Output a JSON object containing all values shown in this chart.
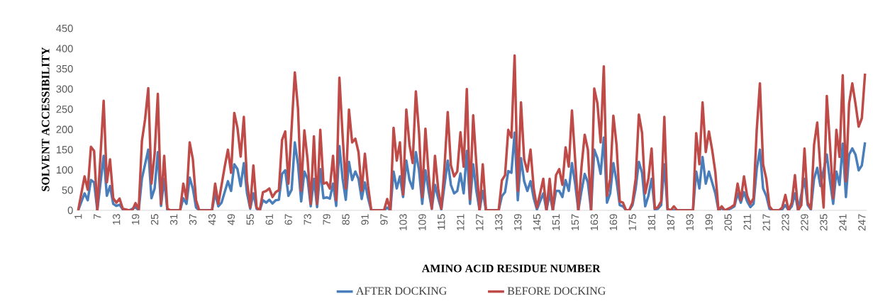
{
  "chart_data": {
    "type": "line",
    "xlabel": "AMINO ACID RESIDUE NUMBER",
    "ylabel": "SOLVENT ACCESSIBILITY",
    "xlim": [
      0.5,
      248.5
    ],
    "xticks": [
      1,
      7,
      13,
      19,
      25,
      31,
      37,
      43,
      49,
      55,
      61,
      67,
      73,
      79,
      85,
      91,
      97,
      103,
      109,
      115,
      121,
      127,
      133,
      139,
      145,
      151,
      157,
      163,
      169,
      175,
      181,
      187,
      193,
      199,
      205,
      211,
      217,
      223,
      229,
      235,
      241,
      247
    ],
    "ylim": [
      0,
      450
    ],
    "yticks": [
      0,
      50,
      100,
      150,
      200,
      250,
      300,
      350,
      400,
      450
    ],
    "grid": false,
    "legend": "bottom",
    "marker": "none",
    "line_style": "solid",
    "series": [
      {
        "name": "AFTER DOCKING",
        "color": "#4a7ebb",
        "x": [
          1,
          3,
          4,
          5,
          6,
          7,
          9,
          10,
          11,
          12,
          13,
          14,
          15,
          17,
          19,
          20,
          21,
          23,
          24,
          25,
          26,
          27,
          28,
          29,
          33,
          34,
          35,
          36,
          37,
          38,
          39,
          43,
          44,
          45,
          46,
          48,
          49,
          50,
          51,
          52,
          53,
          54,
          55,
          56,
          57,
          58,
          59,
          60,
          61,
          62,
          63,
          64,
          65,
          66,
          67,
          68,
          69,
          70,
          71,
          72,
          73,
          74,
          75,
          76,
          77,
          78,
          79,
          80,
          81,
          82,
          83,
          84,
          85,
          86,
          87,
          88,
          89,
          90,
          91,
          92,
          93,
          97,
          98,
          99,
          100,
          101,
          102,
          103,
          104,
          105,
          106,
          107,
          108,
          109,
          110,
          111,
          112,
          113,
          114,
          115,
          116,
          117,
          118,
          119,
          120,
          121,
          122,
          123,
          124,
          125,
          126,
          127,
          128,
          129,
          133,
          134,
          135,
          136,
          137,
          138,
          139,
          140,
          141,
          142,
          143,
          144,
          145,
          146,
          147,
          148,
          149,
          150,
          151,
          152,
          153,
          154,
          155,
          156,
          157,
          158,
          159,
          160,
          161,
          162,
          163,
          164,
          165,
          166,
          167,
          168,
          169,
          170,
          171,
          172,
          173,
          174,
          175,
          176,
          177,
          178,
          179,
          180,
          181,
          182,
          183,
          184,
          185,
          186,
          187,
          194,
          195,
          196,
          197,
          198,
          199,
          200,
          201,
          202,
          203,
          204,
          205,
          206,
          207,
          208,
          209,
          210,
          211,
          212,
          213,
          214,
          215,
          216,
          217,
          218,
          219,
          221,
          222,
          223,
          224,
          225,
          226,
          227,
          228,
          229,
          230,
          231,
          232,
          233,
          234,
          235,
          236,
          237,
          238,
          239,
          240,
          241,
          242,
          243,
          244,
          245,
          246,
          247,
          248
        ],
        "values": [
          0,
          42,
          25,
          75,
          69,
          0,
          135,
          36,
          60,
          16,
          11,
          14,
          2,
          0,
          8,
          0,
          78,
          150,
          30,
          54,
          144,
          11,
          78,
          0,
          0,
          30,
          16,
          81,
          54,
          7,
          0,
          0,
          42,
          10,
          19,
          72,
          48,
          114,
          102,
          60,
          117,
          42,
          4,
          42,
          4,
          0,
          25,
          19,
          26,
          17,
          25,
          26,
          90,
          99,
          36,
          51,
          168,
          114,
          22,
          96,
          78,
          10,
          78,
          8,
          102,
          30,
          32,
          29,
          66,
          11,
          159,
          78,
          26,
          120,
          75,
          96,
          78,
          28,
          69,
          30,
          0,
          0,
          7,
          0,
          96,
          54,
          84,
          33,
          123,
          75,
          54,
          144,
          99,
          16,
          99,
          48,
          4,
          63,
          30,
          2,
          63,
          123,
          63,
          42,
          48,
          91,
          42,
          147,
          16,
          114,
          48,
          0,
          48,
          0,
          0,
          35,
          45,
          97,
          93,
          192,
          25,
          129,
          72,
          48,
          72,
          30,
          2,
          22,
          42,
          0,
          42,
          0,
          48,
          48,
          33,
          75,
          48,
          117,
          66,
          0,
          48,
          90,
          69,
          0,
          150,
          129,
          90,
          180,
          19,
          42,
          117,
          72,
          13,
          10,
          0,
          0,
          13,
          54,
          120,
          93,
          10,
          36,
          78,
          2,
          4,
          13,
          114,
          2,
          0,
          0,
          96,
          54,
          132,
          66,
          96,
          69,
          42,
          0,
          5,
          0,
          2,
          5,
          10,
          42,
          19,
          45,
          22,
          8,
          16,
          102,
          150,
          54,
          36,
          4,
          0,
          0,
          2,
          13,
          0,
          10,
          42,
          0,
          null,
          78,
          13,
          2,
          78,
          105,
          60,
          null,
          138,
          72,
          16,
          96,
          63,
          165,
          33,
          138,
          153,
          138,
          99,
          111,
          168
        ]
      },
      {
        "name": "BEFORE DOCKING",
        "color": "#be4b48",
        "x": [
          1,
          3,
          4,
          5,
          6,
          7,
          9,
          10,
          11,
          12,
          13,
          14,
          15,
          17,
          18,
          19,
          20,
          21,
          22,
          23,
          24,
          25,
          26,
          27,
          28,
          29,
          30,
          33,
          34,
          35,
          36,
          37,
          38,
          39,
          40,
          43,
          44,
          45,
          47,
          48,
          49,
          50,
          51,
          52,
          53,
          54,
          55,
          56,
          57,
          58,
          59,
          60,
          61,
          62,
          63,
          64,
          65,
          66,
          67,
          69,
          70,
          71,
          72,
          73,
          74,
          75,
          76,
          77,
          78,
          79,
          80,
          81,
          82,
          83,
          84,
          85,
          86,
          87,
          88,
          89,
          90,
          91,
          92,
          93,
          97,
          98,
          99,
          100,
          101,
          102,
          103,
          104,
          105,
          106,
          107,
          108,
          109,
          110,
          111,
          112,
          113,
          114,
          115,
          116,
          117,
          118,
          119,
          120,
          121,
          122,
          123,
          124,
          125,
          126,
          127,
          128,
          129,
          133,
          134,
          135,
          136,
          137,
          138,
          139,
          140,
          141,
          142,
          143,
          144,
          145,
          146,
          147,
          148,
          149,
          150,
          151,
          152,
          153,
          154,
          155,
          156,
          157,
          158,
          159,
          160,
          161,
          162,
          163,
          164,
          165,
          166,
          167,
          168,
          169,
          170,
          171,
          172,
          173,
          174,
          175,
          176,
          177,
          178,
          179,
          180,
          181,
          182,
          183,
          184,
          185,
          186,
          187,
          188,
          189,
          194,
          195,
          196,
          197,
          198,
          199,
          200,
          201,
          202,
          203,
          204,
          205,
          206,
          207,
          208,
          209,
          210,
          211,
          212,
          213,
          214,
          215,
          216,
          217,
          218,
          219,
          221,
          222,
          223,
          224,
          225,
          226,
          227,
          228,
          229,
          230,
          231,
          232,
          233,
          234,
          235,
          236,
          237,
          238,
          239,
          240,
          241,
          242,
          243,
          244,
          245,
          246,
          247,
          248
        ],
        "values": [
          0,
          84,
          51,
          157,
          147,
          0,
          271,
          69,
          126,
          30,
          19,
          29,
          4,
          0,
          0,
          18,
          2,
          171,
          225,
          302,
          66,
          140,
          288,
          16,
          135,
          4,
          0,
          0,
          66,
          28,
          168,
          126,
          25,
          0,
          0,
          0,
          66,
          16,
          108,
          150,
          93,
          241,
          204,
          133,
          231,
          72,
          7,
          111,
          7,
          0,
          45,
          48,
          54,
          33,
          45,
          50,
          174,
          195,
          66,
          341,
          252,
          48,
          198,
          126,
          16,
          183,
          16,
          199,
          66,
          69,
          54,
          135,
          25,
          328,
          186,
          54,
          249,
          168,
          177,
          144,
          48,
          140,
          60,
          0,
          0,
          28,
          0,
          204,
          123,
          168,
          39,
          249,
          162,
          117,
          294,
          192,
          33,
          202,
          90,
          4,
          135,
          54,
          4,
          108,
          243,
          111,
          84,
          96,
          193,
          108,
          300,
          28,
          235,
          114,
          0,
          114,
          0,
          0,
          74,
          87,
          199,
          180,
          383,
          48,
          267,
          126,
          96,
          150,
          54,
          7,
          42,
          78,
          0,
          78,
          0,
          87,
          102,
          63,
          156,
          108,
          247,
          126,
          0,
          108,
          187,
          150,
          0,
          301,
          264,
          168,
          356,
          36,
          78,
          234,
          162,
          22,
          19,
          0,
          0,
          19,
          78,
          237,
          192,
          42,
          78,
          153,
          4,
          8,
          22,
          231,
          4,
          0,
          10,
          0,
          0,
          191,
          114,
          267,
          144,
          195,
          150,
          95,
          0,
          10,
          0,
          4,
          8,
          14,
          66,
          25,
          84,
          36,
          16,
          30,
          198,
          314,
          114,
          78,
          10,
          0,
          0,
          7,
          38,
          0,
          19,
          87,
          0,
          13,
          153,
          19,
          4,
          162,
          217,
          102,
          7,
          283,
          162,
          30,
          199,
          132,
          334,
          72,
          264,
          314,
          264,
          207,
          228,
          338
        ]
      }
    ]
  }
}
